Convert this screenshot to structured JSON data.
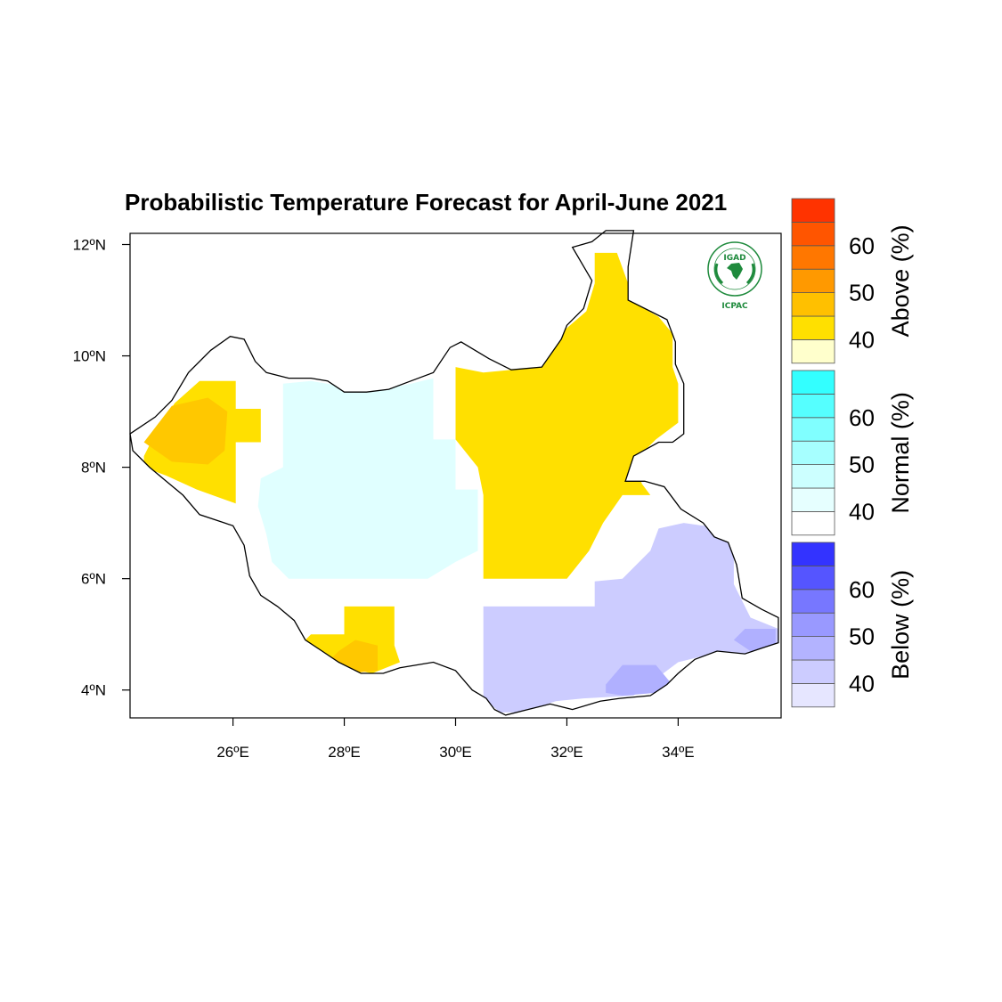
{
  "title": "Probabilistic Temperature Forecast for April-June 2021",
  "axes": {
    "lat_ticks": [
      {
        "value": 12,
        "label": "12ºN"
      },
      {
        "value": 10,
        "label": "10ºN"
      },
      {
        "value": 8,
        "label": "8ºN"
      },
      {
        "value": 6,
        "label": "6ºN"
      },
      {
        "value": 4,
        "label": "4ºN"
      }
    ],
    "lon_ticks": [
      {
        "value": 26,
        "label": "26ºE"
      },
      {
        "value": 28,
        "label": "28ºE"
      },
      {
        "value": 30,
        "label": "30ºE"
      },
      {
        "value": 32,
        "label": "32ºE"
      },
      {
        "value": 34,
        "label": "34ºE"
      }
    ],
    "lon_range": [
      24.15,
      35.85
    ],
    "lat_range": [
      3.5,
      12.2
    ]
  },
  "colorbars": [
    {
      "title": "Above (%)",
      "labels": [
        "40",
        "50",
        "60"
      ],
      "colors": [
        "#ffffcc",
        "#ffe000",
        "#ffc000",
        "#ff9900",
        "#ff7700",
        "#ff5500",
        "#ff3300"
      ]
    },
    {
      "title": "Normal (%)",
      "labels": [
        "40",
        "50",
        "60"
      ],
      "colors": [
        "#ffffff",
        "#e6ffff",
        "#ccffff",
        "#a6ffff",
        "#80ffff",
        "#55ffff",
        "#33ffff"
      ]
    },
    {
      "title": "Below (%)",
      "labels": [
        "40",
        "50",
        "60"
      ],
      "colors": [
        "#e6e6ff",
        "#ccccff",
        "#b3b3ff",
        "#9999ff",
        "#7777ff",
        "#5555ff",
        "#3333ff"
      ]
    }
  ],
  "logo": {
    "top_text": "IGAD",
    "bottom_text": "ICPAC",
    "color": "#1e8a3c"
  },
  "palette": {
    "above_45": "#ffe000",
    "above_50": "#ffc800",
    "normal_45": "#e0ffff",
    "below_45": "#ccccff",
    "below_50": "#b0b0ff",
    "border": "#000000"
  },
  "forecast_regions": [
    {
      "category": "Above",
      "probability_class": "40-50",
      "color": "above_45",
      "polygon": [
        [
          24.4,
          8.2
        ],
        [
          24.6,
          8.6
        ],
        [
          24.95,
          9.15
        ],
        [
          25.4,
          9.55
        ],
        [
          26.05,
          9.55
        ],
        [
          26.05,
          9.05
        ],
        [
          26.5,
          9.05
        ],
        [
          26.5,
          8.45
        ],
        [
          26.05,
          8.45
        ],
        [
          26.05,
          7.35
        ],
        [
          25.35,
          7.6
        ],
        [
          24.8,
          7.85
        ],
        [
          24.4,
          8.0
        ]
      ]
    },
    {
      "category": "Above",
      "probability_class": "50-60",
      "color": "above_50",
      "polygon": [
        [
          24.4,
          8.45
        ],
        [
          24.9,
          9.1
        ],
        [
          25.55,
          9.25
        ],
        [
          25.9,
          9.0
        ],
        [
          25.85,
          8.3
        ],
        [
          25.55,
          8.05
        ],
        [
          24.9,
          8.1
        ]
      ]
    },
    {
      "category": "Above",
      "probability_class": "40-50",
      "color": "above_45",
      "polygon": [
        [
          30.0,
          9.8
        ],
        [
          30.5,
          9.7
        ],
        [
          31.0,
          9.75
        ],
        [
          31.4,
          10.0
        ],
        [
          31.8,
          10.3
        ],
        [
          32.0,
          10.5
        ],
        [
          32.35,
          10.8
        ],
        [
          32.5,
          11.3
        ],
        [
          32.5,
          11.85
        ],
        [
          32.9,
          11.85
        ],
        [
          33.1,
          11.3
        ],
        [
          33.3,
          10.9
        ],
        [
          33.65,
          10.7
        ],
        [
          33.9,
          10.4
        ],
        [
          33.9,
          9.8
        ],
        [
          34.0,
          9.5
        ],
        [
          34.0,
          8.8
        ],
        [
          33.6,
          8.5
        ],
        [
          33.2,
          8.1
        ],
        [
          33.35,
          7.7
        ],
        [
          33.5,
          7.5
        ],
        [
          33.0,
          7.5
        ],
        [
          32.65,
          7.0
        ],
        [
          32.4,
          6.5
        ],
        [
          32.0,
          6.0
        ],
        [
          31.3,
          6.0
        ],
        [
          30.5,
          6.0
        ],
        [
          30.5,
          7.5
        ],
        [
          30.4,
          8.0
        ],
        [
          30.0,
          8.5
        ]
      ]
    },
    {
      "category": "Above",
      "probability_class": "40-50",
      "color": "above_45",
      "polygon": [
        [
          28.0,
          5.5
        ],
        [
          28.9,
          5.5
        ],
        [
          28.9,
          4.8
        ],
        [
          29.0,
          4.5
        ],
        [
          28.5,
          4.3
        ],
        [
          28.0,
          4.4
        ],
        [
          27.4,
          4.6
        ],
        [
          27.2,
          4.8
        ],
        [
          27.4,
          5.0
        ],
        [
          28.0,
          5.0
        ]
      ]
    },
    {
      "category": "Above",
      "probability_class": "50-60",
      "color": "above_50",
      "polygon": [
        [
          27.8,
          4.3
        ],
        [
          28.1,
          4.3
        ],
        [
          28.6,
          4.35
        ],
        [
          28.6,
          4.8
        ],
        [
          28.2,
          4.9
        ],
        [
          27.9,
          4.7
        ],
        [
          27.7,
          4.5
        ]
      ]
    },
    {
      "category": "Normal",
      "probability_class": "40-50",
      "color": "normal_45",
      "polygon": [
        [
          26.9,
          9.5
        ],
        [
          27.4,
          9.55
        ],
        [
          28.0,
          9.45
        ],
        [
          28.7,
          9.4
        ],
        [
          29.2,
          9.5
        ],
        [
          29.6,
          9.6
        ],
        [
          29.6,
          8.5
        ],
        [
          30.0,
          8.5
        ],
        [
          30.0,
          7.6
        ],
        [
          30.4,
          7.6
        ],
        [
          30.4,
          6.5
        ],
        [
          30.0,
          6.3
        ],
        [
          29.5,
          6.0
        ],
        [
          28.9,
          6.0
        ],
        [
          28.5,
          6.0
        ],
        [
          27.6,
          6.0
        ],
        [
          27.0,
          6.0
        ],
        [
          26.7,
          6.3
        ],
        [
          26.6,
          6.8
        ],
        [
          26.45,
          7.3
        ],
        [
          26.5,
          7.8
        ],
        [
          26.9,
          8.0
        ],
        [
          26.9,
          8.5
        ]
      ]
    },
    {
      "category": "Below",
      "probability_class": "40-50",
      "color": "below_45",
      "polygon": [
        [
          30.5,
          5.5
        ],
        [
          31.0,
          5.5
        ],
        [
          32.5,
          5.5
        ],
        [
          32.5,
          5.95
        ],
        [
          33.0,
          6.0
        ],
        [
          33.5,
          6.5
        ],
        [
          33.65,
          6.9
        ],
        [
          34.1,
          7.0
        ],
        [
          34.8,
          6.9
        ],
        [
          35.0,
          6.4
        ],
        [
          35.0,
          5.9
        ],
        [
          35.3,
          5.3
        ],
        [
          35.8,
          5.1
        ],
        [
          35.8,
          4.7
        ],
        [
          35.3,
          4.65
        ],
        [
          34.9,
          4.65
        ],
        [
          34.4,
          4.6
        ],
        [
          34.0,
          4.5
        ],
        [
          33.6,
          4.2
        ],
        [
          33.2,
          3.9
        ],
        [
          32.3,
          3.85
        ],
        [
          31.8,
          3.8
        ],
        [
          31.2,
          3.6
        ],
        [
          30.8,
          3.6
        ],
        [
          30.5,
          3.85
        ],
        [
          30.5,
          4.6
        ]
      ]
    },
    {
      "category": "Below",
      "probability_class": "50-60",
      "color": "below_50",
      "polygon": [
        [
          32.7,
          4.1
        ],
        [
          33.0,
          4.45
        ],
        [
          33.6,
          4.45
        ],
        [
          33.85,
          4.15
        ],
        [
          33.6,
          3.95
        ],
        [
          33.0,
          3.9
        ],
        [
          32.7,
          3.95
        ]
      ]
    },
    {
      "category": "Below",
      "probability_class": "50-60",
      "color": "below_50",
      "polygon": [
        [
          35.2,
          5.1
        ],
        [
          35.75,
          5.1
        ],
        [
          35.75,
          4.7
        ],
        [
          35.3,
          4.7
        ],
        [
          35.0,
          4.9
        ]
      ]
    }
  ],
  "outline": [
    [
      24.15,
      8.6
    ],
    [
      24.6,
      8.9
    ],
    [
      24.9,
      9.2
    ],
    [
      25.2,
      9.7
    ],
    [
      25.6,
      10.1
    ],
    [
      25.95,
      10.35
    ],
    [
      26.2,
      10.3
    ],
    [
      26.4,
      9.9
    ],
    [
      26.6,
      9.7
    ],
    [
      27.0,
      9.6
    ],
    [
      27.4,
      9.6
    ],
    [
      27.7,
      9.55
    ],
    [
      28.0,
      9.35
    ],
    [
      28.4,
      9.35
    ],
    [
      28.8,
      9.4
    ],
    [
      29.2,
      9.55
    ],
    [
      29.6,
      9.7
    ],
    [
      29.9,
      10.15
    ],
    [
      30.1,
      10.25
    ],
    [
      30.6,
      9.95
    ],
    [
      31.0,
      9.75
    ],
    [
      31.55,
      9.8
    ],
    [
      31.9,
      10.3
    ],
    [
      32.0,
      10.55
    ],
    [
      32.3,
      10.85
    ],
    [
      32.45,
      11.35
    ],
    [
      32.1,
      11.95
    ],
    [
      32.45,
      12.05
    ],
    [
      32.7,
      12.25
    ],
    [
      33.2,
      12.25
    ],
    [
      33.1,
      11.6
    ],
    [
      33.1,
      11.0
    ],
    [
      33.5,
      10.8
    ],
    [
      33.8,
      10.65
    ],
    [
      33.95,
      10.25
    ],
    [
      33.95,
      9.85
    ],
    [
      34.1,
      9.5
    ],
    [
      34.1,
      8.6
    ],
    [
      33.9,
      8.45
    ],
    [
      33.65,
      8.45
    ],
    [
      33.2,
      8.2
    ],
    [
      33.05,
      7.75
    ],
    [
      33.4,
      7.75
    ],
    [
      33.75,
      7.65
    ],
    [
      34.05,
      7.25
    ],
    [
      34.45,
      7.0
    ],
    [
      34.65,
      6.75
    ],
    [
      34.9,
      6.65
    ],
    [
      35.05,
      6.25
    ],
    [
      35.15,
      5.65
    ],
    [
      35.5,
      5.45
    ],
    [
      35.8,
      5.3
    ],
    [
      35.8,
      4.85
    ],
    [
      35.5,
      4.75
    ],
    [
      35.2,
      4.65
    ],
    [
      34.7,
      4.7
    ],
    [
      34.3,
      4.55
    ],
    [
      34.0,
      4.3
    ],
    [
      33.8,
      4.1
    ],
    [
      33.5,
      3.9
    ],
    [
      32.95,
      3.85
    ],
    [
      32.6,
      3.8
    ],
    [
      32.1,
      3.65
    ],
    [
      31.7,
      3.75
    ],
    [
      31.3,
      3.65
    ],
    [
      30.9,
      3.55
    ],
    [
      30.7,
      3.65
    ],
    [
      30.55,
      3.85
    ],
    [
      30.3,
      4.0
    ],
    [
      30.0,
      4.35
    ],
    [
      29.6,
      4.5
    ],
    [
      29.3,
      4.45
    ],
    [
      29.0,
      4.4
    ],
    [
      28.7,
      4.3
    ],
    [
      28.3,
      4.3
    ],
    [
      27.9,
      4.5
    ],
    [
      27.6,
      4.7
    ],
    [
      27.3,
      4.9
    ],
    [
      27.1,
      5.25
    ],
    [
      26.8,
      5.5
    ],
    [
      26.5,
      5.7
    ],
    [
      26.3,
      6.05
    ],
    [
      26.2,
      6.6
    ],
    [
      26.0,
      6.95
    ],
    [
      25.4,
      7.15
    ],
    [
      25.1,
      7.5
    ],
    [
      24.8,
      7.75
    ],
    [
      24.5,
      8.0
    ],
    [
      24.2,
      8.3
    ]
  ]
}
